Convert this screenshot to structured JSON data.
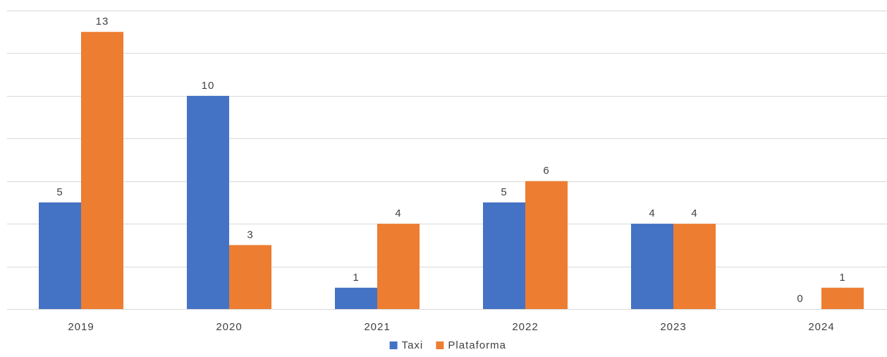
{
  "chart_data": {
    "type": "bar",
    "categories": [
      "2019",
      "2020",
      "2021",
      "2022",
      "2023",
      "2024"
    ],
    "series": [
      {
        "name": "Taxi",
        "color": "#4472C4",
        "values": [
          5,
          10,
          1,
          5,
          4,
          0
        ]
      },
      {
        "name": "Plataforma",
        "color": "#ED7D31",
        "values": [
          13,
          3,
          4,
          6,
          4,
          1
        ]
      }
    ],
    "title": "",
    "xlabel": "",
    "ylabel": "",
    "ylim": [
      0,
      14
    ],
    "grid": true,
    "data_labels": true,
    "legend_position": "bottom"
  }
}
